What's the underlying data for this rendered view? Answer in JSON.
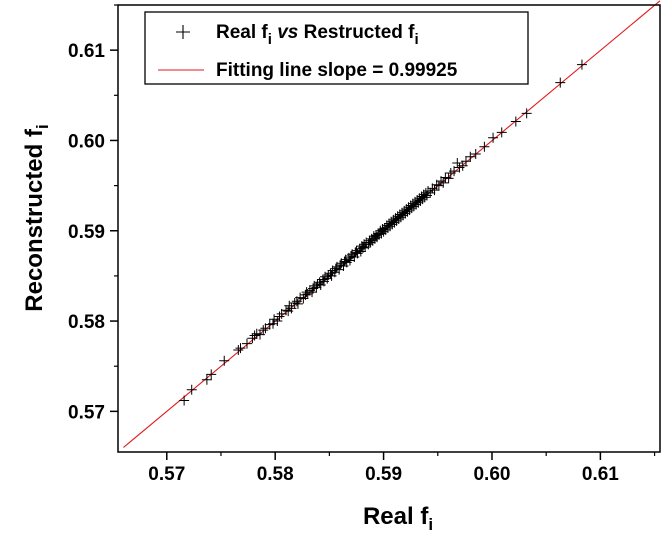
{
  "chart_data": {
    "type": "scatter",
    "xlabel": {
      "main": "Real f",
      "sub": "i"
    },
    "ylabel": {
      "main": "Reconstructed f",
      "sub": "i"
    },
    "xlim": [
      0.5655,
      0.6155
    ],
    "ylim": [
      0.5655,
      0.615
    ],
    "x_ticks": [
      "0.57",
      "0.58",
      "0.59",
      "0.60",
      "0.61"
    ],
    "y_ticks": [
      "0.57",
      "0.58",
      "0.59",
      "0.60",
      "0.61"
    ],
    "x_tick_values": [
      0.57,
      0.58,
      0.59,
      0.6,
      0.61
    ],
    "y_tick_values": [
      0.57,
      0.58,
      0.59,
      0.6,
      0.61
    ],
    "grid": false,
    "legend_position": "top-left",
    "legend": [
      {
        "marker": "plus",
        "parts": [
          {
            "text": "Real f",
            "style": "normal"
          },
          {
            "text": "i",
            "style": "sub"
          },
          {
            "text": " vs",
            "style": "italic"
          },
          {
            "text": " Restructed f",
            "style": "normal"
          },
          {
            "text": "i",
            "style": "sub"
          }
        ]
      },
      {
        "marker": "line",
        "parts": [
          {
            "text": "Fitting line slope = 0.99925",
            "style": "normal"
          }
        ]
      }
    ],
    "colors": {
      "points": "#000000",
      "fit_line": "#e31a1c"
    },
    "fit_line": {
      "slope": 0.99925,
      "x_range": [
        0.566,
        0.6155
      ]
    },
    "series": [
      {
        "name": "Real fi vs Restructed fi",
        "points": [
          [
            0.5716,
            0.5712
          ],
          [
            0.5723,
            0.5724
          ],
          [
            0.5737,
            0.5735
          ],
          [
            0.5741,
            0.5741
          ],
          [
            0.5753,
            0.5756
          ],
          [
            0.5766,
            0.5768
          ],
          [
            0.5768,
            0.577
          ],
          [
            0.5774,
            0.5775
          ],
          [
            0.5779,
            0.5781
          ],
          [
            0.5781,
            0.5784
          ],
          [
            0.5783,
            0.5786
          ],
          [
            0.5786,
            0.5785
          ],
          [
            0.5789,
            0.579
          ],
          [
            0.5791,
            0.5792
          ],
          [
            0.5795,
            0.5796
          ],
          [
            0.5798,
            0.5797
          ],
          [
            0.5799,
            0.5802
          ],
          [
            0.5802,
            0.58
          ],
          [
            0.5804,
            0.5805
          ],
          [
            0.5806,
            0.5808
          ],
          [
            0.581,
            0.5812
          ],
          [
            0.5812,
            0.5811
          ],
          [
            0.5813,
            0.5817
          ],
          [
            0.5815,
            0.5814
          ],
          [
            0.5818,
            0.582
          ],
          [
            0.582,
            0.5822
          ],
          [
            0.5821,
            0.5819
          ],
          [
            0.5823,
            0.5826
          ],
          [
            0.5826,
            0.5825
          ],
          [
            0.5828,
            0.5829
          ],
          [
            0.5829,
            0.5832
          ],
          [
            0.583,
            0.583
          ],
          [
            0.5832,
            0.5834
          ],
          [
            0.5834,
            0.5832
          ],
          [
            0.5835,
            0.5836
          ],
          [
            0.5836,
            0.5839
          ],
          [
            0.5838,
            0.5837
          ],
          [
            0.5839,
            0.5841
          ],
          [
            0.5841,
            0.5843
          ],
          [
            0.5842,
            0.584
          ],
          [
            0.5844,
            0.5846
          ],
          [
            0.5845,
            0.5844
          ],
          [
            0.5846,
            0.5849
          ],
          [
            0.5848,
            0.5847
          ],
          [
            0.5849,
            0.5851
          ],
          [
            0.5851,
            0.5853
          ],
          [
            0.5852,
            0.585
          ],
          [
            0.5853,
            0.5856
          ],
          [
            0.5855,
            0.5854
          ],
          [
            0.5856,
            0.5858
          ],
          [
            0.5857,
            0.586
          ],
          [
            0.5859,
            0.5857
          ],
          [
            0.586,
            0.5862
          ],
          [
            0.5861,
            0.5864
          ],
          [
            0.5863,
            0.5861
          ],
          [
            0.5864,
            0.5866
          ],
          [
            0.5865,
            0.5868
          ],
          [
            0.5866,
            0.5865
          ],
          [
            0.5868,
            0.587
          ],
          [
            0.5869,
            0.5867
          ],
          [
            0.587,
            0.5872
          ],
          [
            0.5871,
            0.5874
          ],
          [
            0.5873,
            0.5871
          ],
          [
            0.5874,
            0.5876
          ],
          [
            0.5875,
            0.5878
          ],
          [
            0.5876,
            0.5875
          ],
          [
            0.5878,
            0.588
          ],
          [
            0.5879,
            0.5877
          ],
          [
            0.588,
            0.5883
          ],
          [
            0.5881,
            0.5881
          ],
          [
            0.5882,
            0.5885
          ],
          [
            0.5883,
            0.5882
          ],
          [
            0.5884,
            0.5887
          ],
          [
            0.5886,
            0.5885
          ],
          [
            0.5887,
            0.5889
          ],
          [
            0.5888,
            0.5887
          ],
          [
            0.5889,
            0.5891
          ],
          [
            0.589,
            0.5889
          ],
          [
            0.5891,
            0.5894
          ],
          [
            0.5892,
            0.5891
          ],
          [
            0.5893,
            0.5895
          ],
          [
            0.5894,
            0.5893
          ],
          [
            0.5895,
            0.5897
          ],
          [
            0.5896,
            0.5896
          ],
          [
            0.5897,
            0.59
          ],
          [
            0.5898,
            0.5897
          ],
          [
            0.5899,
            0.5902
          ],
          [
            0.59,
            0.5899
          ],
          [
            0.5901,
            0.5903
          ],
          [
            0.5902,
            0.5901
          ],
          [
            0.5903,
            0.5906
          ],
          [
            0.5904,
            0.5903
          ],
          [
            0.5905,
            0.5908
          ],
          [
            0.5906,
            0.5905
          ],
          [
            0.5907,
            0.591
          ],
          [
            0.5908,
            0.5907
          ],
          [
            0.5909,
            0.5912
          ],
          [
            0.591,
            0.5909
          ],
          [
            0.5911,
            0.5914
          ],
          [
            0.5912,
            0.5911
          ],
          [
            0.5913,
            0.5916
          ],
          [
            0.5914,
            0.5913
          ],
          [
            0.5915,
            0.5918
          ],
          [
            0.5916,
            0.5915
          ],
          [
            0.5917,
            0.592
          ],
          [
            0.5918,
            0.5917
          ],
          [
            0.5919,
            0.5922
          ],
          [
            0.592,
            0.5919
          ],
          [
            0.5921,
            0.5924
          ],
          [
            0.5922,
            0.5921
          ],
          [
            0.5923,
            0.5926
          ],
          [
            0.5924,
            0.5923
          ],
          [
            0.5925,
            0.5928
          ],
          [
            0.5926,
            0.5925
          ],
          [
            0.5927,
            0.593
          ],
          [
            0.5928,
            0.5927
          ],
          [
            0.5929,
            0.5932
          ],
          [
            0.593,
            0.5929
          ],
          [
            0.5931,
            0.5934
          ],
          [
            0.5932,
            0.5931
          ],
          [
            0.5933,
            0.5936
          ],
          [
            0.5934,
            0.5933
          ],
          [
            0.5935,
            0.5938
          ],
          [
            0.5936,
            0.5935
          ],
          [
            0.5937,
            0.594
          ],
          [
            0.5938,
            0.5937
          ],
          [
            0.5939,
            0.5942
          ],
          [
            0.594,
            0.5939
          ],
          [
            0.5941,
            0.5944
          ],
          [
            0.5943,
            0.5942
          ],
          [
            0.5945,
            0.5947
          ],
          [
            0.5947,
            0.5945
          ],
          [
            0.5949,
            0.5951
          ],
          [
            0.5951,
            0.595
          ],
          [
            0.5953,
            0.5955
          ],
          [
            0.5955,
            0.5953
          ],
          [
            0.5957,
            0.5959
          ],
          [
            0.596,
            0.5958
          ],
          [
            0.5962,
            0.5964
          ],
          [
            0.5965,
            0.5966
          ],
          [
            0.5968,
            0.5975
          ],
          [
            0.597,
            0.597
          ],
          [
            0.5973,
            0.5972
          ],
          [
            0.5976,
            0.5977
          ],
          [
            0.598,
            0.5982
          ],
          [
            0.5985,
            0.5985
          ],
          [
            0.5993,
            0.5993
          ],
          [
            0.6001,
            0.6003
          ],
          [
            0.6009,
            0.6009
          ],
          [
            0.6022,
            0.6021
          ],
          [
            0.6032,
            0.603
          ],
          [
            0.6063,
            0.6064
          ],
          [
            0.6083,
            0.6084
          ]
        ]
      }
    ]
  }
}
